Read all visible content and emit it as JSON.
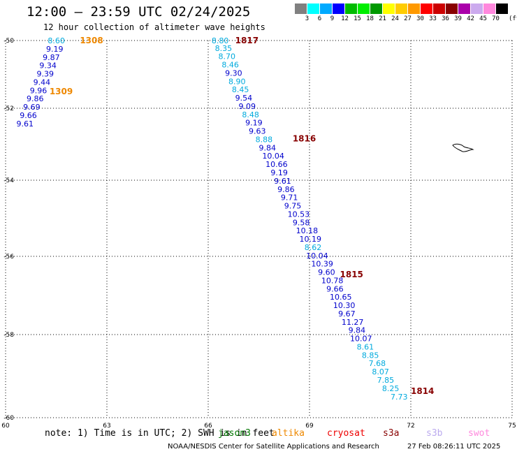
{
  "header": {
    "title": "12:00 — 23:59 UTC 02/24/2025",
    "subtitle": "12 hour collection of altimeter wave heights"
  },
  "legend": {
    "colors": [
      "#808080",
      "#00ffff",
      "#00aaff",
      "#0000ff",
      "#00bb00",
      "#00ee00",
      "#009900",
      "#ffff00",
      "#ffcc00",
      "#ff9900",
      "#ff0000",
      "#cc0000",
      "#880000",
      "#aa00aa",
      "#ccaaee",
      "#ff88dd",
      "#000000"
    ],
    "ticks": [
      "3",
      "6",
      "9",
      "12",
      "15",
      "18",
      "21",
      "24",
      "27",
      "30",
      "33",
      "36",
      "39",
      "42",
      "45",
      "70"
    ],
    "unit": "(ft)"
  },
  "chart_data": {
    "type": "scatter",
    "xlim": [
      60,
      75
    ],
    "ylim": [
      -60,
      -50
    ],
    "x_ticks": [
      "60",
      "63",
      "66",
      "69",
      "72",
      "75"
    ],
    "y_ticks": [
      "-50",
      "-52",
      "-54",
      "-56",
      "-58",
      "-60"
    ],
    "tracks": [
      {
        "label": "1308",
        "color": "#ee8800",
        "lon": 62.2,
        "lat": -50.0
      },
      {
        "label": "1309",
        "color": "#ee8800",
        "lon": 61.3,
        "lat": -51.35
      },
      {
        "label": "1817",
        "color": "#880000",
        "lon": 66.8,
        "lat": -50.0
      },
      {
        "label": "1816",
        "color": "#880000",
        "lon": 68.5,
        "lat": -52.6
      },
      {
        "label": "1815",
        "color": "#880000",
        "lon": 69.9,
        "lat": -56.2
      },
      {
        "label": "1814",
        "color": "#880000",
        "lon": 72.0,
        "lat": -59.3
      }
    ],
    "points": [
      {
        "v": "8.60",
        "c": "#00aadd",
        "lon": 61.25,
        "lat": -50.0
      },
      {
        "v": "9.19",
        "c": "#0000cc",
        "lon": 61.2,
        "lat": -50.22
      },
      {
        "v": "9.87",
        "c": "#0000cc",
        "lon": 61.1,
        "lat": -50.44
      },
      {
        "v": "9.34",
        "c": "#0000cc",
        "lon": 61.0,
        "lat": -50.66
      },
      {
        "v": "9.39",
        "c": "#0000cc",
        "lon": 60.92,
        "lat": -50.88
      },
      {
        "v": "9.44",
        "c": "#0000cc",
        "lon": 60.82,
        "lat": -51.1
      },
      {
        "v": "9.96",
        "c": "#0000cc",
        "lon": 60.72,
        "lat": -51.32
      },
      {
        "v": "9.86",
        "c": "#0000cc",
        "lon": 60.62,
        "lat": -51.54
      },
      {
        "v": "9.69",
        "c": "#0000cc",
        "lon": 60.52,
        "lat": -51.76
      },
      {
        "v": "9.66",
        "c": "#0000cc",
        "lon": 60.42,
        "lat": -51.98
      },
      {
        "v": "9.61",
        "c": "#0000cc",
        "lon": 60.32,
        "lat": -52.2
      },
      {
        "v": "8.80",
        "c": "#00aadd",
        "lon": 66.1,
        "lat": -50.0
      },
      {
        "v": "8.35",
        "c": "#00aadd",
        "lon": 66.2,
        "lat": -50.2
      },
      {
        "v": "8.70",
        "c": "#00aadd",
        "lon": 66.3,
        "lat": -50.42
      },
      {
        "v": "8.46",
        "c": "#00aadd",
        "lon": 66.4,
        "lat": -50.64
      },
      {
        "v": "9.30",
        "c": "#0000cc",
        "lon": 66.5,
        "lat": -50.86
      },
      {
        "v": "8.90",
        "c": "#00aadd",
        "lon": 66.6,
        "lat": -51.08
      },
      {
        "v": "8.45",
        "c": "#00aadd",
        "lon": 66.7,
        "lat": -51.3
      },
      {
        "v": "9.54",
        "c": "#0000cc",
        "lon": 66.8,
        "lat": -51.52
      },
      {
        "v": "9.09",
        "c": "#0000cc",
        "lon": 66.9,
        "lat": -51.74
      },
      {
        "v": "8.48",
        "c": "#00aadd",
        "lon": 67.0,
        "lat": -51.96
      },
      {
        "v": "9.19",
        "c": "#0000cc",
        "lon": 67.1,
        "lat": -52.18
      },
      {
        "v": "9.63",
        "c": "#0000cc",
        "lon": 67.2,
        "lat": -52.4
      },
      {
        "v": "8.88",
        "c": "#00aadd",
        "lon": 67.4,
        "lat": -52.62
      },
      {
        "v": "9.84",
        "c": "#0000cc",
        "lon": 67.5,
        "lat": -52.84
      },
      {
        "v": "10.04",
        "c": "#0000cc",
        "lon": 67.6,
        "lat": -53.06
      },
      {
        "v": "10.66",
        "c": "#0000cc",
        "lon": 67.7,
        "lat": -53.28
      },
      {
        "v": "9.19",
        "c": "#0000cc",
        "lon": 67.85,
        "lat": -53.5
      },
      {
        "v": "9.61",
        "c": "#0000cc",
        "lon": 67.95,
        "lat": -53.72
      },
      {
        "v": "9.86",
        "c": "#0000cc",
        "lon": 68.05,
        "lat": -53.94
      },
      {
        "v": "9.71",
        "c": "#0000cc",
        "lon": 68.15,
        "lat": -54.16
      },
      {
        "v": "9.75",
        "c": "#0000cc",
        "lon": 68.25,
        "lat": -54.38
      },
      {
        "v": "10.53",
        "c": "#0000cc",
        "lon": 68.35,
        "lat": -54.6
      },
      {
        "v": "9.58",
        "c": "#0000cc",
        "lon": 68.5,
        "lat": -54.82
      },
      {
        "v": "10.18",
        "c": "#0000cc",
        "lon": 68.6,
        "lat": -55.04
      },
      {
        "v": "10.19",
        "c": "#0000cc",
        "lon": 68.7,
        "lat": -55.26
      },
      {
        "v": "8.62",
        "c": "#00aadd",
        "lon": 68.85,
        "lat": -55.48
      },
      {
        "v": "10.04",
        "c": "#0000cc",
        "lon": 68.9,
        "lat": -55.7
      },
      {
        "v": "10.39",
        "c": "#0000cc",
        "lon": 69.05,
        "lat": -55.92
      },
      {
        "v": "9.60",
        "c": "#0000cc",
        "lon": 69.25,
        "lat": -56.14
      },
      {
        "v": "10.78",
        "c": "#0000cc",
        "lon": 69.35,
        "lat": -56.36
      },
      {
        "v": "9.66",
        "c": "#0000cc",
        "lon": 69.5,
        "lat": -56.58
      },
      {
        "v": "10.65",
        "c": "#0000cc",
        "lon": 69.6,
        "lat": -56.8
      },
      {
        "v": "10.30",
        "c": "#0000cc",
        "lon": 69.7,
        "lat": -57.02
      },
      {
        "v": "9.67",
        "c": "#0000cc",
        "lon": 69.85,
        "lat": -57.24
      },
      {
        "v": "11.27",
        "c": "#0000cc",
        "lon": 69.95,
        "lat": -57.46
      },
      {
        "v": "9.84",
        "c": "#0000cc",
        "lon": 70.15,
        "lat": -57.68
      },
      {
        "v": "10.07",
        "c": "#0000cc",
        "lon": 70.2,
        "lat": -57.9
      },
      {
        "v": "8.61",
        "c": "#00aadd",
        "lon": 70.4,
        "lat": -58.12
      },
      {
        "v": "8.85",
        "c": "#00aadd",
        "lon": 70.55,
        "lat": -58.34
      },
      {
        "v": "7.68",
        "c": "#00aadd",
        "lon": 70.75,
        "lat": -58.56
      },
      {
        "v": "8.07",
        "c": "#00aadd",
        "lon": 70.85,
        "lat": -58.78
      },
      {
        "v": "7.85",
        "c": "#00aadd",
        "lon": 71.0,
        "lat": -59.0
      },
      {
        "v": "8.25",
        "c": "#00aadd",
        "lon": 71.15,
        "lat": -59.22
      },
      {
        "v": "7.73",
        "c": "#00aadd",
        "lon": 71.4,
        "lat": -59.44
      }
    ]
  },
  "footer": {
    "note": "note: 1) Time is in UTC; 2) SWH is in feet",
    "missions": [
      {
        "name": "jason3",
        "color": "#007700"
      },
      {
        "name": "altika",
        "color": "#ee8800"
      },
      {
        "name": "cryosat",
        "color": "#ee0000"
      },
      {
        "name": "s3a",
        "color": "#880000"
      },
      {
        "name": "s3b",
        "color": "#bbaaee"
      },
      {
        "name": "swot",
        "color": "#ff88dd"
      }
    ],
    "credit": "NOAA/NESDIS Center for Satellite Applications and Research",
    "generated": "27 Feb 08:26:11 UTC 2025"
  }
}
